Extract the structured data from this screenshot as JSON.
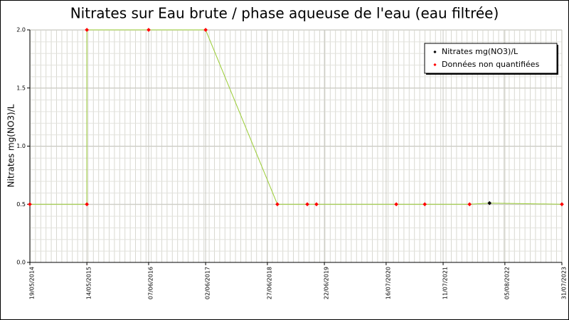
{
  "chart_data": {
    "type": "line",
    "title": "Nitrates sur Eau brute / phase aqueuse de l'eau (eau filtrée)",
    "y_label": "Nitrates mg(NO3)/L",
    "xlim": [
      "2014-05-19",
      "2023-07-31"
    ],
    "xticks": [
      {
        "value": "2014-05-19",
        "label": "19/05/2014"
      },
      {
        "value": "2015-05-14",
        "label": "14/05/2015"
      },
      {
        "value": "2016-06-07",
        "label": "07/06/2016"
      },
      {
        "value": "2017-06-02",
        "label": "02/06/2017"
      },
      {
        "value": "2018-06-27",
        "label": "27/06/2018"
      },
      {
        "value": "2019-06-22",
        "label": "22/06/2019"
      },
      {
        "value": "2020-07-16",
        "label": "16/07/2020"
      },
      {
        "value": "2021-07-11",
        "label": "11/07/2021"
      },
      {
        "value": "2022-08-05",
        "label": "05/08/2022"
      },
      {
        "value": "2023-07-31",
        "label": "31/07/2023"
      }
    ],
    "ylim": [
      0,
      2
    ],
    "yticks": [
      {
        "value": 0,
        "label": "0.0"
      },
      {
        "value": 0.5,
        "label": "0.5"
      },
      {
        "value": 1,
        "label": "1.0"
      },
      {
        "value": 1.5,
        "label": "1.5"
      },
      {
        "value": 2,
        "label": "2.0"
      }
    ],
    "grid": true,
    "legend_position": "upper right",
    "series": [
      {
        "name": "Nitrates mg(NO3)/L",
        "color": "#000000",
        "line_color": "#99cc33",
        "x": [
          "2014-05-19",
          "2015-05-14",
          "2015-05-14",
          "2016-06-07",
          "2017-06-02",
          "2018-08-29",
          "2019-03-06",
          "2019-05-03",
          "2020-09-18",
          "2021-03-17",
          "2021-12-25",
          "2022-04-30",
          "2023-07-31"
        ],
        "values": [
          0.5,
          0.5,
          2,
          2,
          2,
          0.5,
          0.5,
          0.5,
          0.5,
          0.5,
          0.5,
          0.51,
          0.5
        ],
        "marker_colors": [
          "#ff0000",
          "#ff0000",
          "#ff0000",
          "#ff0000",
          "#ff0000",
          "#ff0000",
          "#ff0000",
          "#ff0000",
          "#ff0000",
          "#ff0000",
          "#ff0000",
          "#000000",
          "#ff0000"
        ]
      }
    ],
    "non_quantified": {
      "name": "Données non quantifiées",
      "color": "#ff0000"
    }
  }
}
